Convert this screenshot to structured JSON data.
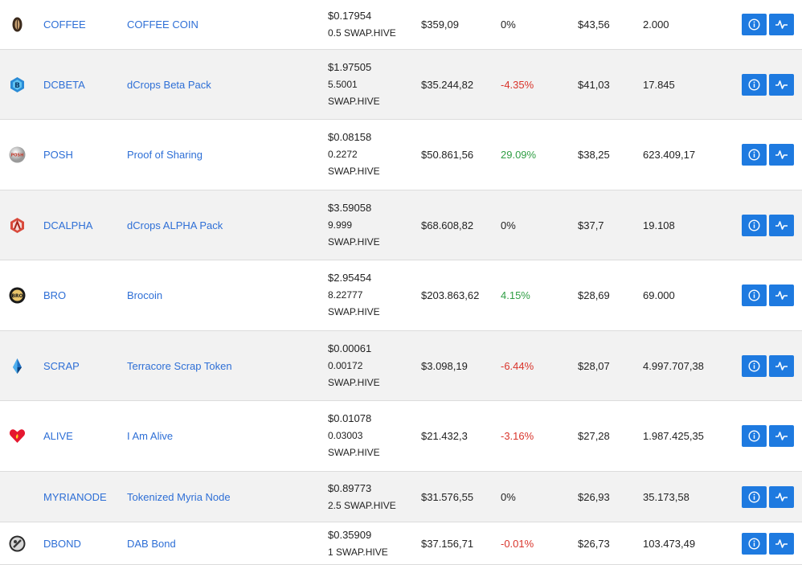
{
  "rows": [
    {
      "icon": "coffee-coin-icon",
      "symbol": "COFFEE",
      "name": "COFFEE COIN",
      "price_usd": "$0.17954",
      "price_hive": "0.5 SWAP.HIVE",
      "price_swap": "",
      "market_cap": "$359,09",
      "change": "0%",
      "change_type": "zero",
      "volume": "$43,56",
      "supply": "2.000"
    },
    {
      "icon": "dcbeta-pack-icon",
      "symbol": "DCBETA",
      "name": "dCrops Beta Pack",
      "price_usd": "$1.97505",
      "price_hive": "5.5001",
      "price_swap": "SWAP.HIVE",
      "market_cap": "$35.244,82",
      "change": "-4.35%",
      "change_type": "neg",
      "volume": "$41,03",
      "supply": "17.845"
    },
    {
      "icon": "posh-icon",
      "symbol": "POSH",
      "name": "Proof of Sharing",
      "price_usd": "$0.08158",
      "price_hive": "0.2272",
      "price_swap": "SWAP.HIVE",
      "market_cap": "$50.861,56",
      "change": "29.09%",
      "change_type": "pos",
      "volume": "$38,25",
      "supply": "623.409,17"
    },
    {
      "icon": "dcalpha-pack-icon",
      "symbol": "DCALPHA",
      "name": "dCrops ALPHA Pack",
      "price_usd": "$3.59058",
      "price_hive": "9.999",
      "price_swap": "SWAP.HIVE",
      "market_cap": "$68.608,82",
      "change": "0%",
      "change_type": "zero",
      "volume": "$37,7",
      "supply": "19.108"
    },
    {
      "icon": "brocoin-icon",
      "symbol": "BRO",
      "name": "Brocoin",
      "price_usd": "$2.95454",
      "price_hive": "8.22777",
      "price_swap": "SWAP.HIVE",
      "market_cap": "$203.863,62",
      "change": "4.15%",
      "change_type": "pos",
      "volume": "$28,69",
      "supply": "69.000"
    },
    {
      "icon": "scrap-crystal-icon",
      "symbol": "SCRAP",
      "name": "Terracore Scrap Token",
      "price_usd": "$0.00061",
      "price_hive": "0.00172",
      "price_swap": "SWAP.HIVE",
      "market_cap": "$3.098,19",
      "change": "-6.44%",
      "change_type": "neg",
      "volume": "$28,07",
      "supply": "4.997.707,38"
    },
    {
      "icon": "heart-icon",
      "symbol": "ALIVE",
      "name": "I Am Alive",
      "price_usd": "$0.01078",
      "price_hive": "0.03003",
      "price_swap": "SWAP.HIVE",
      "market_cap": "$21.432,3",
      "change": "-3.16%",
      "change_type": "neg",
      "volume": "$27,28",
      "supply": "1.987.425,35"
    },
    {
      "icon": "",
      "symbol": "MYRIANODE",
      "name": "Tokenized Myria Node",
      "price_usd": "$0.89773",
      "price_hive": "2.5 SWAP.HIVE",
      "price_swap": "",
      "market_cap": "$31.576,55",
      "change": "0%",
      "change_type": "zero",
      "volume": "$26,93",
      "supply": "35.173,58"
    },
    {
      "icon": "dab-bond-icon",
      "symbol": "DBOND",
      "name": "DAB Bond",
      "price_usd": "$0.35909",
      "price_hive": "1 SWAP.HIVE",
      "price_swap": "",
      "market_cap": "$37.156,71",
      "change": "-0.01%",
      "change_type": "neg",
      "volume": "$26,73",
      "supply": "103.473,49"
    }
  ],
  "colors": {
    "link": "#2e6fd6",
    "negative": "#d9342b",
    "positive": "#2f9e44",
    "button": "#1e7ae0"
  }
}
